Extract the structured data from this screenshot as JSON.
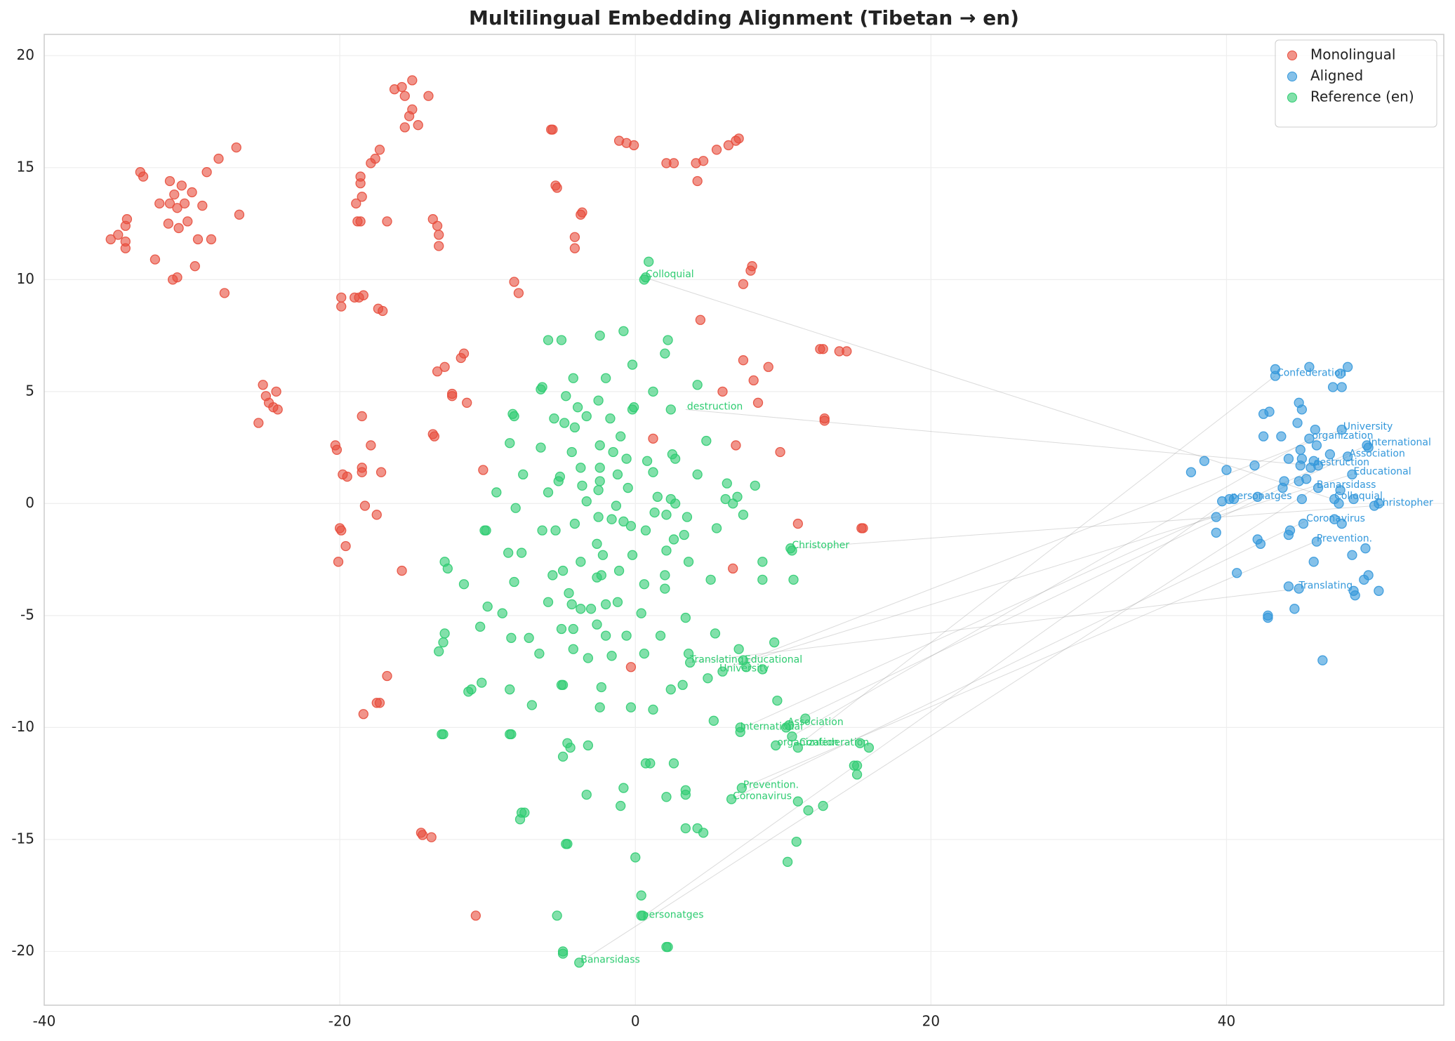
{
  "chart_data": {
    "type": "scatter",
    "title": "Multilingual Embedding Alignment (Tibetan → en)",
    "xlim": [
      -40,
      54.7
    ],
    "ylim": [
      -22.4,
      20.95
    ],
    "xticks": [
      -40,
      -20,
      0,
      20,
      40
    ],
    "yticks": [
      -20,
      -15,
      -10,
      -5,
      0,
      5,
      10,
      15,
      20
    ],
    "grid": true,
    "legend": "upper right",
    "alpha": 0.6,
    "series": [
      {
        "name": "Monolingual",
        "color": "#e74c3c",
        "x": [
          -35.5,
          -35,
          -34.5,
          -34.4,
          -34.5,
          -34.5,
          -33.5,
          -33.3,
          -32.5,
          -32.2,
          -31.6,
          -31.5,
          -31.5,
          -31.2,
          -31,
          -30.9,
          -30.7,
          -30.5,
          -30.3,
          -30,
          -29.8,
          -29.6,
          -29.3,
          -29,
          -28.7,
          -28.2,
          -27.8,
          -27,
          -26.8,
          -31.3,
          -31,
          -25.2,
          -25,
          -24.8,
          -24.5,
          -24.3,
          -24.2,
          -25.5,
          -20.3,
          -20.2,
          -19.8,
          -19.5,
          -20,
          -19.9,
          -19.6,
          -20.1,
          -18.5,
          -18.5,
          -18.5,
          -18.3,
          -17.9,
          -17.5,
          -17.2,
          -16.8,
          -17.5,
          -17.3,
          -18.4,
          -15.8,
          -19.9,
          -19.9,
          -19,
          -18.7,
          -18.4,
          -17.4,
          -17.1,
          -18.8,
          -18.6,
          -18.9,
          -18.5,
          -18.6,
          -18.6,
          -17.9,
          -17.6,
          -17.3,
          -16.8,
          -16.3,
          -15.8,
          -15.6,
          -15.1,
          -15.1,
          -15.3,
          -15.6,
          -14.7,
          -14,
          -13.7,
          -13.4,
          -13.3,
          -13.3,
          -13.4,
          -12.9,
          -12.4,
          -12.4,
          -11.8,
          -11.6,
          -11.4,
          -13.7,
          -13.6,
          -10.3,
          -14.5,
          -14.4,
          -13.8,
          -10.8,
          -8.2,
          -7.9,
          -5.7,
          -5.6,
          -5.4,
          -5.3,
          -3.6,
          -3.7,
          -4.1,
          -4.1,
          -1.1,
          -0.6,
          -0.1,
          2.1,
          2.6,
          4.1,
          4.2,
          4.6,
          5.5,
          6.3,
          6.8,
          7,
          7.3,
          7.8,
          7.9,
          4.4,
          7.3,
          8,
          9,
          5.9,
          8.3,
          12.5,
          12.7,
          13.8,
          14.3,
          12.8,
          12.8,
          1.2,
          6.8,
          9.8,
          11,
          15.3,
          15.4,
          6.6,
          -0.3
        ],
        "y": [
          11.8,
          12,
          12.4,
          12.7,
          11.7,
          11.4,
          14.8,
          14.6,
          10.9,
          13.4,
          12.5,
          14.4,
          13.4,
          13.8,
          13.2,
          12.3,
          14.2,
          13.4,
          12.6,
          13.9,
          10.6,
          11.8,
          13.3,
          14.8,
          11.8,
          15.4,
          9.4,
          15.9,
          12.9,
          10,
          10.1,
          5.3,
          4.8,
          4.5,
          4.3,
          5,
          4.2,
          3.6,
          2.6,
          2.4,
          1.3,
          1.2,
          -1.1,
          -1.2,
          -1.9,
          -2.6,
          3.9,
          1.6,
          1.4,
          -0.1,
          2.6,
          -0.5,
          1.4,
          -7.7,
          -8.9,
          -8.9,
          -9.4,
          -3,
          9.2,
          8.8,
          9.2,
          9.2,
          9.3,
          8.7,
          8.6,
          12.6,
          12.6,
          13.4,
          13.7,
          14.3,
          14.6,
          15.2,
          15.4,
          15.8,
          12.6,
          18.5,
          18.6,
          18.2,
          18.9,
          17.6,
          17.3,
          16.8,
          16.9,
          18.2,
          12.7,
          12.4,
          12,
          11.5,
          5.9,
          6.1,
          4.9,
          4.8,
          6.5,
          6.7,
          4.5,
          3.1,
          3,
          1.5,
          -14.7,
          -14.8,
          -14.9,
          -18.4,
          9.9,
          9.4,
          16.7,
          16.7,
          14.2,
          14.1,
          13,
          12.9,
          11.9,
          11.4,
          16.2,
          16.1,
          16,
          15.2,
          15.2,
          15.2,
          14.4,
          15.3,
          15.8,
          16,
          16.2,
          16.3,
          9.8,
          10.4,
          10.6,
          8.2,
          6.4,
          5.5,
          6.1,
          5,
          4.5,
          6.9,
          6.9,
          6.8,
          6.8,
          3.8,
          3.7,
          2.9,
          2.6,
          2.3,
          -0.9,
          -1.1,
          -1.1,
          -2.9,
          -7.3
        ]
      },
      {
        "name": "Aligned",
        "color": "#3498db",
        "x": [
          43.3,
          43.3,
          45.6,
          48.2,
          47.7,
          47.2,
          47.8,
          44.9,
          45.1,
          42.5,
          42.9,
          44.8,
          46,
          47.8,
          42.5,
          43.7,
          45.6,
          46.1,
          49.5,
          49.6,
          45,
          47,
          48.2,
          38.5,
          44.2,
          45.1,
          45.9,
          46.2,
          41.9,
          45.7,
          45,
          40,
          37.6,
          48.5,
          45.4,
          43.9,
          44.9,
          43.8,
          46.2,
          47.7,
          42.1,
          40.5,
          47.3,
          48.6,
          45.1,
          39.7,
          40.2,
          47.6,
          50,
          50.3,
          39.3,
          47.3,
          45.2,
          47.8,
          39.3,
          44.3,
          44.2,
          42.1,
          42.3,
          46.1,
          49.4,
          48.5,
          45.9,
          40.7,
          49.6,
          49.3,
          44.2,
          44.9,
          48.6,
          50.3,
          48.7,
          44.6,
          42.8,
          42.8,
          46.5
        ],
        "y": [
          6,
          5.7,
          6.1,
          6.1,
          5.8,
          5.2,
          5.2,
          4.5,
          4.2,
          4,
          4.1,
          3.6,
          3.3,
          3.3,
          3,
          3,
          2.9,
          2.6,
          2.6,
          2.5,
          2.4,
          2.2,
          2.1,
          1.9,
          2,
          2,
          1.9,
          1.7,
          1.7,
          1.6,
          1.7,
          1.5,
          1.4,
          1.3,
          1.1,
          1,
          1,
          0.7,
          0.7,
          0.6,
          0.3,
          0.2,
          0.2,
          0.2,
          0.2,
          0.1,
          0.2,
          0,
          -0.1,
          0,
          -0.6,
          -0.7,
          -0.9,
          -0.9,
          -1.3,
          -1.2,
          -1.4,
          -1.6,
          -1.8,
          -1.7,
          -2,
          -2.3,
          -2.6,
          -3.1,
          -3.2,
          -3.4,
          -3.7,
          -3.8,
          -3.9,
          -3.9,
          -4.1,
          -4.7,
          -5,
          -5.1,
          -7
        ]
      },
      {
        "name": "Reference (en)",
        "color": "#2ecc71",
        "x": [
          0.9,
          0.6,
          0.7,
          -5.9,
          -5,
          -2.4,
          -0.8,
          2.2,
          2,
          -0.2,
          -6.4,
          -6.3,
          -4.2,
          -2,
          1.2,
          4.2,
          -4.7,
          -2.5,
          -3.9,
          -0.1,
          -0.2,
          2.4,
          -8.3,
          -8.2,
          -5.5,
          -4.8,
          -4.1,
          -3.3,
          -1.7,
          -1,
          4.8,
          -8.5,
          -6.4,
          -4.3,
          -2.4,
          -1.5,
          2.5,
          2.7,
          -7.6,
          -5.2,
          -5.1,
          -3.7,
          -2.4,
          -1.2,
          -0.6,
          0.8,
          1.2,
          4.2,
          6.2,
          8.1,
          -9.4,
          -5.9,
          -3.6,
          -2.5,
          -2.4,
          -0.5,
          1.5,
          2.4,
          2.7,
          6.1,
          6.6,
          6.9,
          -3.3,
          -8.1,
          -1.3,
          -2.5,
          -1.6,
          -0.8,
          -0.3,
          1.3,
          2.1,
          3.5,
          7.3,
          -10.2,
          -10.1,
          -6.3,
          -5.4,
          -4.1,
          0.7,
          3.3,
          2.6,
          5.5,
          -2.6,
          -2.2,
          -0.2,
          2.1,
          10.5,
          10.6,
          -8.6,
          -7.7,
          -3.7,
          -1.1,
          -12.9,
          -12.7,
          3.6,
          8.6,
          -4.9,
          -5.6,
          -2.6,
          -2.3,
          0.6,
          2,
          5.1,
          8.6,
          10.7,
          -11.6,
          -8.2,
          -4.5,
          -5.9,
          -4.3,
          -3.7,
          -3,
          -1.2,
          -2,
          2,
          -10,
          -9,
          0.4,
          3.4,
          -10.5,
          -5,
          -4.2,
          -2.6,
          -2,
          -0.6,
          1.7,
          5.4,
          -12.9,
          -13,
          -13.3,
          -8.4,
          -7.2,
          -4.2,
          -6.5,
          -3.2,
          -1.6,
          0.6,
          3.6,
          7,
          9.4,
          3.7,
          7.3,
          7.5,
          8.6,
          5.9,
          4.9,
          -10.4,
          -11.3,
          -11.1,
          -8.5,
          -5,
          -4.9,
          -2.3,
          2.4,
          3.2,
          -7,
          -2.4,
          -0.3,
          1.2,
          9.6,
          -13.1,
          -13,
          -8.5,
          -8.4,
          -4.6,
          -4.4,
          -3.2,
          5.3,
          7.1,
          7.1,
          10.2,
          10.4,
          11.5,
          10.6,
          9.5,
          11,
          15.2,
          15.8,
          -4.9,
          0.7,
          1,
          2.6,
          14.8,
          15,
          15,
          -0.8,
          3.4,
          3.4,
          7.2,
          -3.3,
          2.1,
          6.5,
          11,
          -1,
          11.7,
          12.7,
          -7.7,
          -7.5,
          -7.8,
          3.4,
          4.2,
          4.6,
          -4.7,
          -4.6,
          10.9,
          0,
          10.3,
          0.4,
          -5.3,
          0.4,
          0.5,
          -4.9,
          -4.9,
          2.1,
          2.2,
          -3.8
        ],
        "y": [
          10.8,
          10,
          10.1,
          7.3,
          7.3,
          7.5,
          7.7,
          7.3,
          6.7,
          6.2,
          5.1,
          5.2,
          5.6,
          5.6,
          5,
          5.3,
          4.8,
          4.6,
          4.3,
          4.3,
          4.2,
          4.2,
          4,
          3.9,
          3.8,
          3.6,
          3.4,
          3.9,
          3.8,
          3,
          2.8,
          2.7,
          2.5,
          2.3,
          2.6,
          2.3,
          2.2,
          2,
          1.3,
          1,
          1.2,
          1.6,
          1.6,
          1.3,
          2,
          1.9,
          1.4,
          1.3,
          0.9,
          0.8,
          0.5,
          0.5,
          0.8,
          0.6,
          1,
          0.7,
          0.3,
          0.2,
          0,
          0.2,
          0,
          0.3,
          0.1,
          -0.2,
          -0.1,
          -0.6,
          -0.7,
          -0.8,
          -1,
          -0.4,
          -0.5,
          -0.6,
          -0.5,
          -1.2,
          -1.2,
          -1.2,
          -1.2,
          -0.9,
          -1.2,
          -1.4,
          -1.6,
          -1.1,
          -1.8,
          -2.3,
          -2.3,
          -2.1,
          -2,
          -2.1,
          -2.2,
          -2.2,
          -2.6,
          -3,
          -2.6,
          -2.9,
          -2.6,
          -2.6,
          -3,
          -3.2,
          -3.3,
          -3.2,
          -3.6,
          -3.2,
          -3.4,
          -3.4,
          -3.4,
          -3.6,
          -3.5,
          -4,
          -4.4,
          -4.5,
          -4.7,
          -4.7,
          -4.4,
          -4.5,
          -3.8,
          -4.6,
          -4.9,
          -4.9,
          -5.1,
          -5.5,
          -5.6,
          -5.6,
          -5.4,
          -5.9,
          -5.9,
          -5.9,
          -5.8,
          -5.8,
          -6.2,
          -6.6,
          -6,
          -6,
          -6.5,
          -6.7,
          -6.9,
          -6.8,
          -6.7,
          -6.7,
          -6.5,
          -6.2,
          -7.1,
          -7,
          -7.3,
          -7.4,
          -7.5,
          -7.8,
          -8,
          -8.4,
          -8.3,
          -8.3,
          -8.1,
          -8.1,
          -8.2,
          -8.3,
          -8.1,
          -9,
          -9.1,
          -9.1,
          -9.2,
          -8.8,
          -10.3,
          -10.3,
          -10.3,
          -10.3,
          -10.7,
          -10.9,
          -10.8,
          -9.7,
          -10,
          -10.2,
          -10,
          -9.9,
          -9.6,
          -10.4,
          -10.8,
          -10.9,
          -10.7,
          -10.9,
          -11.3,
          -11.6,
          -11.6,
          -11.6,
          -11.7,
          -11.7,
          -12.1,
          -12.7,
          -12.8,
          -13,
          -12.7,
          -13,
          -13.1,
          -13.2,
          -13.3,
          -13.5,
          -13.7,
          -13.5,
          -13.8,
          -13.8,
          -14.1,
          -14.5,
          -14.5,
          -14.7,
          -15.2,
          -15.2,
          -15.1,
          -15.8,
          -16,
          -17.5,
          -18.4,
          -18.4,
          -18.4,
          -20,
          -20.1,
          -19.8,
          -19.8,
          -20.5
        ]
      }
    ],
    "pairs": [
      {
        "text": "Colloquial",
        "x": [
          0.6,
          47.2
        ],
        "y": [
          10.1,
          0.2
        ]
      },
      {
        "text": "destruction",
        "x": [
          3.4,
          45.8
        ],
        "y": [
          4.2,
          1.7
        ]
      },
      {
        "text": "Christopher",
        "x": [
          10.5,
          50
        ],
        "y": [
          -2,
          -0.1
        ]
      },
      {
        "text": "Translating",
        "x": [
          3.6,
          44.8
        ],
        "y": [
          -7.1,
          -3.8
        ]
      },
      {
        "text": "Educational",
        "x": [
          7.3,
          48.5
        ],
        "y": [
          -7.1,
          1.3
        ]
      },
      {
        "text": "University",
        "x": [
          5.6,
          47.8
        ],
        "y": [
          -7.5,
          3.3
        ]
      },
      {
        "text": "International",
        "x": [
          7,
          49.5
        ],
        "y": [
          -10.1,
          2.6
        ]
      },
      {
        "text": "Association",
        "x": [
          10.2,
          48.2
        ],
        "y": [
          -9.9,
          2.1
        ]
      },
      {
        "text": "organization",
        "x": [
          9.5,
          45.7
        ],
        "y": [
          -10.8,
          2.9
        ]
      },
      {
        "text": "Confederation",
        "x": [
          11,
          43.3
        ],
        "y": [
          -10.8,
          5.7
        ]
      },
      {
        "text": "Prevention.",
        "x": [
          7.2,
          46
        ],
        "y": [
          -12.7,
          -1.7
        ]
      },
      {
        "text": "Coronavirus",
        "x": [
          6.5,
          45.3
        ],
        "y": [
          -13.2,
          -0.8
        ]
      },
      {
        "text": "personatges",
        "x": [
          0.4,
          40.2
        ],
        "y": [
          -18.5,
          0.2
        ]
      },
      {
        "text": "Banarsidass",
        "x": [
          -3.8,
          46
        ],
        "y": [
          -20.5,
          0.7
        ]
      }
    ]
  }
}
